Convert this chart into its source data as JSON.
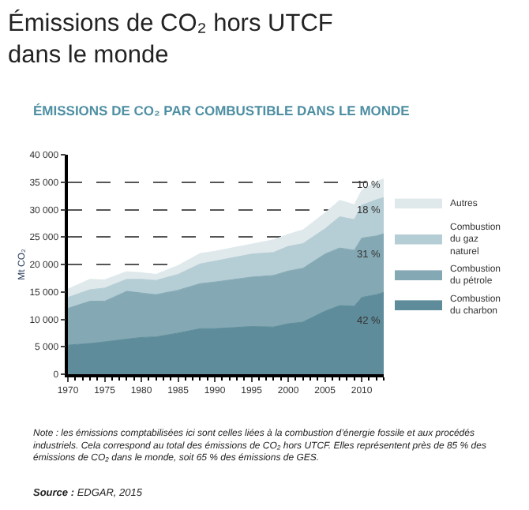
{
  "chart_data": {
    "type": "area",
    "stacked": true,
    "title": "Émissions de CO₂ hors UTCF dans le monde",
    "subtitle": "ÉMISSIONS DE CO₂ PAR COMBUSTIBLE DANS LE MONDE",
    "ylabel": "Mt CO₂",
    "x": [
      1970,
      1973,
      1975,
      1978,
      1980,
      1982,
      1985,
      1988,
      1990,
      1995,
      1998,
      2000,
      2002,
      2005,
      2007,
      2009,
      2010,
      2012,
      2013
    ],
    "series": [
      {
        "name": "Combustion du charbon",
        "color": "#5e8c9a",
        "values": [
          5300,
          5600,
          5900,
          6400,
          6700,
          6800,
          7500,
          8300,
          8300,
          8700,
          8600,
          9200,
          9500,
          11500,
          12500,
          12400,
          14000,
          14500,
          14900
        ]
      },
      {
        "name": "Combustion du pétrole",
        "color": "#84a9b5",
        "values": [
          6700,
          7700,
          7400,
          8700,
          8100,
          7700,
          7800,
          8200,
          8500,
          9000,
          9400,
          9600,
          9800,
          10400,
          10500,
          10200,
          10800,
          10700,
          10700
        ]
      },
      {
        "name": "Combustion du gaz naturel",
        "color": "#b5cdd4",
        "values": [
          2000,
          2100,
          2400,
          2200,
          2500,
          2600,
          2900,
          3600,
          3800,
          4200,
          4200,
          4500,
          4500,
          4600,
          5700,
          5600,
          6000,
          6600,
          6600
        ]
      },
      {
        "name": "Autres",
        "color": "#dfe9ec",
        "values": [
          1500,
          1900,
          1500,
          1400,
          1200,
          1100,
          1600,
          1900,
          1800,
          1800,
          2300,
          2200,
          2500,
          2900,
          3000,
          2700,
          2700,
          3300,
          3400
        ]
      }
    ],
    "xlim": [
      1970,
      2013
    ],
    "xticks": [
      1970,
      1975,
      1980,
      1985,
      1990,
      1995,
      2000,
      2005,
      2010
    ],
    "ylim": [
      0,
      40000
    ],
    "yticks": [
      0,
      {
        "value": 5000,
        "label": "5 000"
      },
      {
        "value": 10000,
        "label": "10 000"
      },
      {
        "value": 15000,
        "label": "15 000"
      },
      {
        "value": 20000,
        "label": "20 000"
      },
      {
        "value": 25000,
        "label": "25 000"
      },
      {
        "value": 30000,
        "label": "30 000"
      },
      {
        "value": 35000,
        "label": "35 000"
      },
      {
        "value": 40000,
        "label": "40 000"
      }
    ],
    "grid": "y",
    "line_style": "solid",
    "marker": "none",
    "legend": "right",
    "annotations": [
      "42 %",
      "31 %",
      "18 %",
      "10 %",
      "Note : les émissions comptabilisées ici sont celles liées à la combustion d’énergie fossile et aux procédés industriels. Cela correspond au total des émissions de CO₂ hors UTCF. Elles représentent près de 85 % des émissions de CO₂ dans le monde, soit 65 % des émissions de GES.",
      "Source : EDGAR, 2015"
    ]
  }
}
